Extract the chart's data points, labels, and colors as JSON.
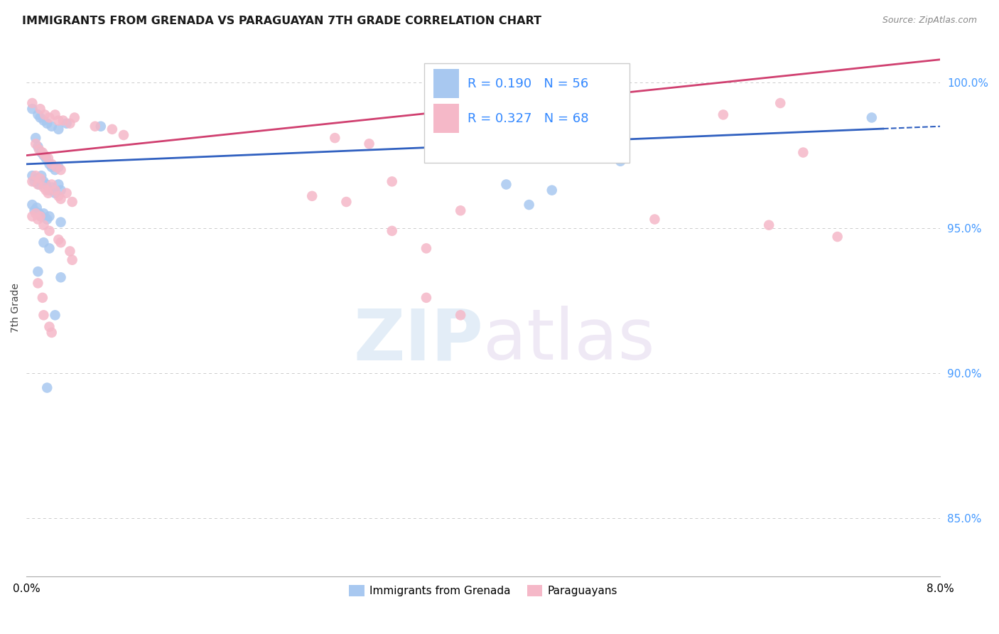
{
  "title": "IMMIGRANTS FROM GRENADA VS PARAGUAYAN 7TH GRADE CORRELATION CHART",
  "source": "Source: ZipAtlas.com",
  "ylabel": "7th Grade",
  "xmin": 0.0,
  "xmax": 8.0,
  "ymin": 83.0,
  "ymax": 101.5,
  "yticks": [
    85.0,
    90.0,
    95.0,
    100.0
  ],
  "ytick_labels": [
    "85.0%",
    "90.0%",
    "95.0%",
    "100.0%"
  ],
  "legend_blue_r": "R = 0.190",
  "legend_blue_n": "N = 56",
  "legend_pink_r": "R = 0.327",
  "legend_pink_n": "N = 68",
  "legend_label_blue": "Immigrants from Grenada",
  "legend_label_pink": "Paraguayans",
  "blue_color": "#a8c8f0",
  "pink_color": "#f5b8c8",
  "blue_line_color": "#3060c0",
  "pink_line_color": "#d04070",
  "blue_scatter": [
    [
      0.05,
      99.1
    ],
    [
      0.1,
      98.9
    ],
    [
      0.12,
      98.8
    ],
    [
      0.15,
      98.7
    ],
    [
      0.18,
      98.6
    ],
    [
      0.22,
      98.5
    ],
    [
      0.28,
      98.4
    ],
    [
      0.35,
      98.6
    ],
    [
      0.65,
      98.5
    ],
    [
      0.08,
      98.1
    ],
    [
      0.1,
      97.8
    ],
    [
      0.13,
      97.6
    ],
    [
      0.15,
      97.5
    ],
    [
      0.17,
      97.4
    ],
    [
      0.2,
      97.2
    ],
    [
      0.22,
      97.1
    ],
    [
      0.25,
      97.0
    ],
    [
      0.28,
      97.1
    ],
    [
      0.05,
      96.8
    ],
    [
      0.07,
      96.6
    ],
    [
      0.09,
      96.7
    ],
    [
      0.11,
      96.5
    ],
    [
      0.13,
      96.8
    ],
    [
      0.15,
      96.6
    ],
    [
      0.17,
      96.5
    ],
    [
      0.2,
      96.3
    ],
    [
      0.22,
      96.4
    ],
    [
      0.25,
      96.2
    ],
    [
      0.28,
      96.5
    ],
    [
      0.3,
      96.3
    ],
    [
      0.05,
      95.8
    ],
    [
      0.07,
      95.6
    ],
    [
      0.09,
      95.7
    ],
    [
      0.11,
      95.5
    ],
    [
      0.13,
      95.4
    ],
    [
      0.15,
      95.5
    ],
    [
      0.18,
      95.3
    ],
    [
      0.2,
      95.4
    ],
    [
      0.3,
      95.2
    ],
    [
      0.15,
      94.5
    ],
    [
      0.2,
      94.3
    ],
    [
      0.1,
      93.5
    ],
    [
      0.3,
      93.3
    ],
    [
      0.25,
      92.0
    ],
    [
      0.18,
      89.5
    ],
    [
      4.2,
      96.5
    ],
    [
      4.6,
      96.3
    ],
    [
      4.4,
      95.8
    ],
    [
      5.2,
      97.3
    ],
    [
      7.4,
      98.8
    ]
  ],
  "pink_scatter": [
    [
      0.05,
      99.3
    ],
    [
      0.12,
      99.1
    ],
    [
      0.16,
      98.9
    ],
    [
      0.2,
      98.8
    ],
    [
      0.25,
      98.9
    ],
    [
      0.28,
      98.7
    ],
    [
      0.32,
      98.7
    ],
    [
      0.38,
      98.6
    ],
    [
      0.42,
      98.8
    ],
    [
      0.6,
      98.5
    ],
    [
      0.75,
      98.4
    ],
    [
      0.85,
      98.2
    ],
    [
      0.08,
      97.9
    ],
    [
      0.11,
      97.7
    ],
    [
      0.14,
      97.6
    ],
    [
      0.16,
      97.5
    ],
    [
      0.19,
      97.4
    ],
    [
      0.22,
      97.2
    ],
    [
      0.26,
      97.1
    ],
    [
      0.3,
      97.0
    ],
    [
      0.05,
      96.6
    ],
    [
      0.08,
      96.8
    ],
    [
      0.1,
      96.5
    ],
    [
      0.12,
      96.7
    ],
    [
      0.15,
      96.4
    ],
    [
      0.17,
      96.3
    ],
    [
      0.19,
      96.2
    ],
    [
      0.22,
      96.5
    ],
    [
      0.25,
      96.3
    ],
    [
      0.28,
      96.1
    ],
    [
      0.3,
      96.0
    ],
    [
      0.35,
      96.2
    ],
    [
      0.4,
      95.9
    ],
    [
      0.05,
      95.4
    ],
    [
      0.08,
      95.5
    ],
    [
      0.1,
      95.3
    ],
    [
      0.12,
      95.4
    ],
    [
      0.15,
      95.1
    ],
    [
      0.2,
      94.9
    ],
    [
      0.28,
      94.6
    ],
    [
      0.3,
      94.5
    ],
    [
      0.38,
      94.2
    ],
    [
      0.4,
      93.9
    ],
    [
      0.1,
      93.1
    ],
    [
      0.14,
      92.6
    ],
    [
      0.2,
      91.6
    ],
    [
      0.22,
      91.4
    ],
    [
      0.15,
      92.0
    ],
    [
      2.7,
      98.1
    ],
    [
      3.0,
      97.9
    ],
    [
      4.5,
      98.7
    ],
    [
      6.1,
      98.9
    ],
    [
      6.6,
      99.3
    ],
    [
      7.1,
      94.7
    ],
    [
      6.5,
      95.1
    ],
    [
      2.5,
      96.1
    ],
    [
      2.8,
      95.9
    ],
    [
      3.2,
      94.9
    ],
    [
      3.5,
      94.3
    ],
    [
      3.8,
      95.6
    ],
    [
      3.2,
      96.6
    ],
    [
      3.5,
      92.6
    ],
    [
      3.8,
      92.0
    ],
    [
      5.5,
      95.3
    ],
    [
      6.8,
      97.6
    ]
  ],
  "watermark_zip": "ZIP",
  "watermark_atlas": "atlas",
  "grid_color": "#cccccc",
  "background_color": "#ffffff"
}
